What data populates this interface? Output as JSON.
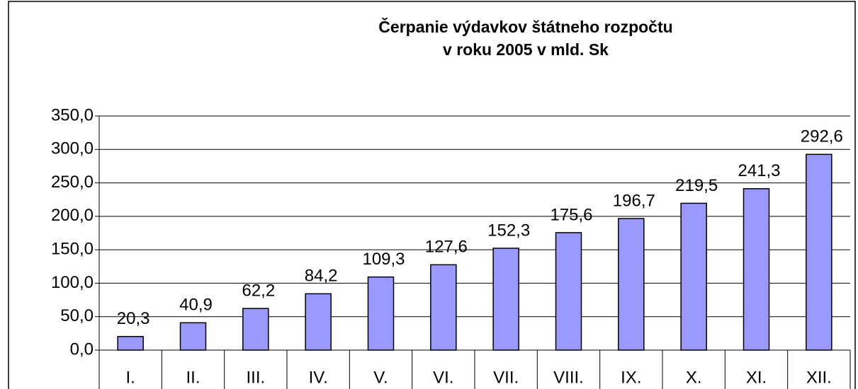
{
  "chart_data": {
    "type": "bar",
    "title": [
      "Čerpanie výdavkov štátneho rozpočtu",
      "v roku 2005 v mld. Sk"
    ],
    "categories": [
      "I.",
      "II.",
      "III.",
      "IV.",
      "V.",
      "VI.",
      "VII.",
      "VIII.",
      "IX.",
      "X.",
      "XI.",
      "XII."
    ],
    "values": [
      20.3,
      40.9,
      62.2,
      84.2,
      109.3,
      127.6,
      152.3,
      175.6,
      196.7,
      219.5,
      241.3,
      292.6
    ],
    "value_labels": [
      "20,3",
      "40,9",
      "62,2",
      "84,2",
      "109,3",
      "127,6",
      "152,3",
      "175,6",
      "196,7",
      "219,5",
      "241,3",
      "292,6"
    ],
    "color": "#9999ff",
    "ylim": [
      0,
      350
    ],
    "yticks": [
      {
        "value": 0,
        "label": "0,0"
      },
      {
        "value": 50,
        "label": "50,0"
      },
      {
        "value": 100,
        "label": "100,0"
      },
      {
        "value": 150,
        "label": "150,0"
      },
      {
        "value": 200,
        "label": "200,0"
      },
      {
        "value": 250,
        "label": "250,0"
      },
      {
        "value": 300,
        "label": "300,0"
      },
      {
        "value": 350,
        "label": "350,0"
      }
    ],
    "grid": true
  }
}
